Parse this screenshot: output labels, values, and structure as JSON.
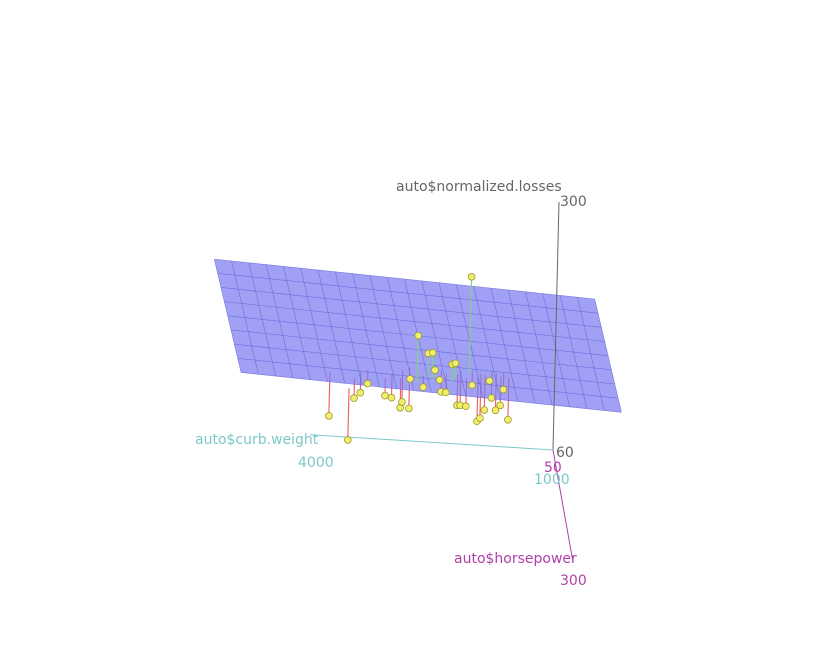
{
  "chart_data": {
    "type": "scatter3d",
    "title": "",
    "surface": "regression plane",
    "colors": {
      "point": "#f0ee6a",
      "point_stroke": "#9a9a2a",
      "residual_above": "#7ed67e",
      "residual_below": "#ef5a5a",
      "plane_fill": "#7b7bf0",
      "plane_grid": "#5a5ad8",
      "axis_z": "#666666",
      "axis_x": "#7cc8c8",
      "axis_y": "#b040a8"
    },
    "axes": {
      "z": {
        "label": "auto$normalized.losses",
        "ticks": [
          "300",
          "60"
        ]
      },
      "x": {
        "label": "auto$curb.weight",
        "ticks": [
          "4000",
          "1000"
        ]
      },
      "y": {
        "label": "auto$horsepower",
        "ticks": [
          "50",
          "300"
        ]
      }
    },
    "points": [
      {
        "curb_weight": 3900,
        "horsepower": 110,
        "losses": 105
      },
      {
        "curb_weight": 3700,
        "horsepower": 150,
        "losses": 100
      },
      {
        "curb_weight": 3600,
        "horsepower": 120,
        "losses": 128
      },
      {
        "curb_weight": 3500,
        "horsepower": 100,
        "losses": 125
      },
      {
        "curb_weight": 3400,
        "horsepower": 90,
        "losses": 130
      },
      {
        "curb_weight": 3200,
        "horsepower": 110,
        "losses": 128
      },
      {
        "curb_weight": 3100,
        "horsepower": 95,
        "losses": 120
      },
      {
        "curb_weight": 3000,
        "horsepower": 105,
        "losses": 115
      },
      {
        "curb_weight": 2950,
        "horsepower": 80,
        "losses": 110
      },
      {
        "curb_weight": 2900,
        "horsepower": 120,
        "losses": 150
      },
      {
        "curb_weight": 2850,
        "horsepower": 70,
        "losses": 100
      },
      {
        "curb_weight": 2800,
        "horsepower": 110,
        "losses": 188
      },
      {
        "curb_weight": 2700,
        "horsepower": 90,
        "losses": 130
      },
      {
        "curb_weight": 2650,
        "horsepower": 95,
        "losses": 165
      },
      {
        "curb_weight": 2600,
        "horsepower": 100,
        "losses": 168
      },
      {
        "curb_weight": 2550,
        "horsepower": 85,
        "losses": 145
      },
      {
        "curb_weight": 2500,
        "horsepower": 95,
        "losses": 140
      },
      {
        "curb_weight": 2450,
        "horsepower": 70,
        "losses": 118
      },
      {
        "curb_weight": 2400,
        "horsepower": 80,
        "losses": 122
      },
      {
        "curb_weight": 2350,
        "horsepower": 100,
        "losses": 158
      },
      {
        "curb_weight": 2300,
        "horsepower": 90,
        "losses": 155
      },
      {
        "curb_weight": 2250,
        "horsepower": 75,
        "losses": 108
      },
      {
        "curb_weight": 2200,
        "horsepower": 65,
        "losses": 104
      },
      {
        "curb_weight": 2150,
        "horsepower": 85,
        "losses": 112
      },
      {
        "curb_weight": 2100,
        "horsepower": 70,
        "losses": 231
      },
      {
        "curb_weight": 2050,
        "horsepower": 60,
        "losses": 122
      },
      {
        "curb_weight": 2000,
        "horsepower": 80,
        "losses": 96
      },
      {
        "curb_weight": 1950,
        "horsepower": 68,
        "losses": 94
      },
      {
        "curb_weight": 1900,
        "horsepower": 70,
        "losses": 103
      },
      {
        "curb_weight": 1850,
        "horsepower": 76,
        "losses": 134
      },
      {
        "curb_weight": 1800,
        "horsepower": 58,
        "losses": 110
      },
      {
        "curb_weight": 1750,
        "horsepower": 62,
        "losses": 100
      },
      {
        "curb_weight": 1700,
        "horsepower": 69,
        "losses": 108
      },
      {
        "curb_weight": 1650,
        "horsepower": 56,
        "losses": 118
      },
      {
        "curb_weight": 1600,
        "horsepower": 70,
        "losses": 95
      }
    ]
  }
}
